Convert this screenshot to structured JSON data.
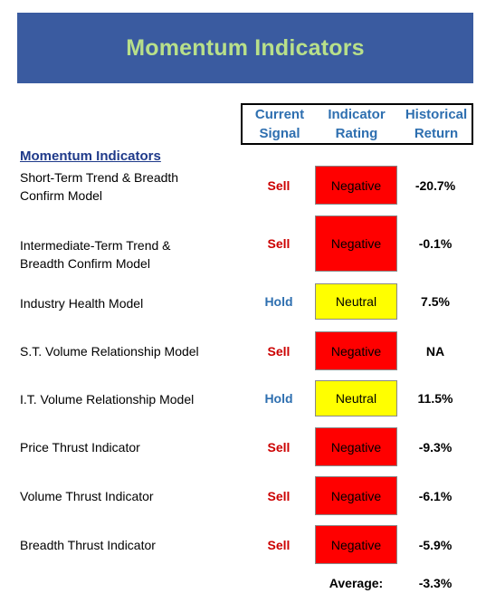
{
  "banner": {
    "title": "Momentum Indicators",
    "bg_color": "#3a5ba0",
    "title_color": "#b8e08a"
  },
  "headers": {
    "signal": [
      "Current",
      "Signal"
    ],
    "rating": [
      "Indicator",
      "Rating"
    ],
    "return": [
      "Historical",
      "Return"
    ]
  },
  "section_title": "Momentum Indicators",
  "colors": {
    "sell": "#cc0000",
    "hold": "#2e6fb0",
    "negative": "#ff0000",
    "neutral": "#ffff00"
  },
  "rows": [
    {
      "name": [
        "Short-Term Trend & Breadth",
        "Confirm Model"
      ],
      "signal": "Sell",
      "rating": "Negative",
      "return": "-20.7%"
    },
    {
      "name": [
        "Intermediate-Term Trend &",
        "Breadth Confirm Model"
      ],
      "signal": "Sell",
      "rating": "Negative",
      "return": "-0.1%"
    },
    {
      "name": [
        "Industry Health Model"
      ],
      "signal": "Hold",
      "rating": "Neutral",
      "return": "7.5%"
    },
    {
      "name": [
        "S.T. Volume Relationship Model"
      ],
      "signal": "Sell",
      "rating": "Negative",
      "return": "NA"
    },
    {
      "name": [
        "I.T. Volume Relationship Model"
      ],
      "signal": "Hold",
      "rating": "Neutral",
      "return": "11.5%"
    },
    {
      "name": [
        "Price Thrust Indicator"
      ],
      "signal": "Sell",
      "rating": "Negative",
      "return": "-9.3%"
    },
    {
      "name": [
        "Volume Thrust Indicator"
      ],
      "signal": "Sell",
      "rating": "Negative",
      "return": "-6.1%"
    },
    {
      "name": [
        "Breadth Thrust Indicator"
      ],
      "signal": "Sell",
      "rating": "Negative",
      "return": "-5.9%"
    }
  ],
  "average": {
    "label": "Average:",
    "value": "-3.3%"
  }
}
